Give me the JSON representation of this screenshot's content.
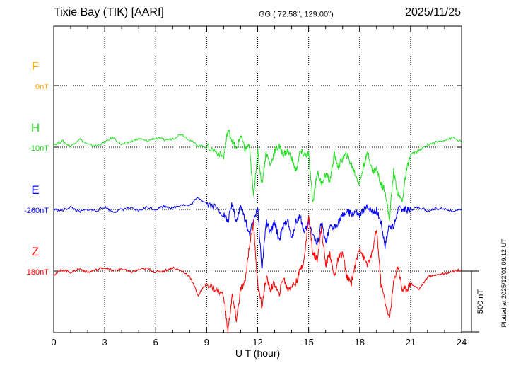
{
  "header": {
    "station": "Tixie Bay (TIK)  [AARI]",
    "coords_prefix": "GG ( 72.58",
    "coords_mid": ", 129.00",
    "coords_suffix": ")",
    "date": "2025/11/25"
  },
  "footer": {
    "plotted_at": "Plotted at 2025/12/01 09:12 UT",
    "scale_label": "500 nT",
    "scale_nT": 500
  },
  "colors": {
    "F": "#f5a800",
    "H": "#22dd22",
    "E": "#0000ff",
    "Z": "#ff0000"
  },
  "chart_data": {
    "type": "line",
    "xlabel": "U T (hour)",
    "xlim": [
      0,
      24
    ],
    "xticks": [
      "0",
      "3",
      "6",
      "9",
      "12",
      "15",
      "18",
      "21",
      "24"
    ],
    "grid": true,
    "series": [
      {
        "name": "F",
        "base_label": "0nT",
        "color": "#f5a800",
        "x": [],
        "y": []
      },
      {
        "name": "H",
        "base_label": "-10nT",
        "color": "#22dd22",
        "x": [
          0,
          0.5,
          1,
          1.5,
          2,
          2.5,
          3,
          3.5,
          4,
          4.5,
          5,
          5.5,
          6,
          6.5,
          7,
          7.5,
          8,
          8.5,
          9,
          9.5,
          10,
          10.25,
          10.5,
          10.75,
          11,
          11.25,
          11.5,
          11.75,
          12,
          12.25,
          12.5,
          12.75,
          13,
          13.25,
          13.5,
          13.75,
          14,
          14.25,
          14.5,
          14.75,
          15,
          15.25,
          15.5,
          15.75,
          16,
          16.25,
          16.5,
          16.75,
          17,
          17.25,
          17.5,
          17.75,
          18,
          18.25,
          18.5,
          18.75,
          19,
          19.25,
          19.5,
          19.75,
          20,
          20.25,
          20.5,
          20.75,
          21,
          21.5,
          22,
          22.5,
          23,
          23.5,
          24
        ],
        "y": [
          20,
          50,
          5,
          70,
          20,
          10,
          40,
          80,
          20,
          45,
          70,
          50,
          75,
          60,
          70,
          110,
          60,
          10,
          5,
          -30,
          -80,
          140,
          60,
          -25,
          100,
          -20,
          20,
          -400,
          -40,
          -300,
          -40,
          -150,
          -30,
          10,
          -60,
          -30,
          -90,
          -200,
          -40,
          -60,
          -60,
          -460,
          -200,
          -300,
          -220,
          -280,
          -60,
          -160,
          -90,
          -60,
          -140,
          -220,
          -300,
          -140,
          -40,
          -200,
          -180,
          -300,
          -350,
          -600,
          -200,
          -380,
          -440,
          -200,
          -60,
          -30,
          20,
          40,
          60,
          80,
          40
        ]
      },
      {
        "name": "E",
        "base_label": "-260nT",
        "color": "#0000ff",
        "x": [
          0,
          0.5,
          1,
          1.5,
          2,
          2.5,
          3,
          3.5,
          4,
          4.5,
          5,
          5.5,
          6,
          6.5,
          7,
          7.5,
          8,
          8.5,
          9,
          9.5,
          10,
          10.25,
          10.5,
          10.75,
          11,
          11.25,
          11.5,
          11.75,
          12,
          12.25,
          12.5,
          12.75,
          13,
          13.25,
          13.5,
          13.75,
          14,
          14.25,
          14.5,
          14.75,
          15,
          15.25,
          15.5,
          15.75,
          16,
          16.25,
          16.5,
          16.75,
          17,
          17.25,
          17.5,
          17.75,
          18,
          18.25,
          18.5,
          18.75,
          19,
          19.25,
          19.5,
          19.75,
          20,
          20.25,
          20.5,
          20.75,
          21,
          21.5,
          22,
          22.5,
          23,
          23.5,
          24
        ],
        "y": [
          0,
          -10,
          20,
          -20,
          0,
          -10,
          20,
          -20,
          0,
          10,
          -10,
          20,
          0,
          30,
          10,
          40,
          30,
          100,
          50,
          20,
          -40,
          -100,
          50,
          -100,
          30,
          -80,
          -200,
          -100,
          20,
          -500,
          -100,
          -200,
          -100,
          -250,
          -150,
          -80,
          -250,
          -100,
          -50,
          -200,
          -100,
          -200,
          -300,
          -100,
          -280,
          -150,
          -150,
          -100,
          -50,
          -20,
          -40,
          -20,
          -60,
          0,
          20,
          -20,
          -10,
          -100,
          -300,
          -120,
          -150,
          0,
          10,
          -10,
          0,
          20,
          -10,
          10,
          0,
          -10,
          0
        ]
      },
      {
        "name": "Z",
        "base_label": "180nT",
        "color": "#ff0000",
        "x": [
          0,
          0.5,
          1,
          1.5,
          2,
          2.5,
          3,
          3.5,
          4,
          4.5,
          5,
          5.5,
          6,
          6.5,
          7,
          7.5,
          8,
          8.5,
          9,
          9.5,
          10,
          10.25,
          10.5,
          10.75,
          11,
          11.25,
          11.5,
          11.75,
          12,
          12.25,
          12.5,
          12.75,
          13,
          13.25,
          13.5,
          13.75,
          14,
          14.25,
          14.5,
          14.75,
          15,
          15.25,
          15.5,
          15.75,
          16,
          16.25,
          16.5,
          16.75,
          17,
          17.25,
          17.5,
          17.75,
          18,
          18.25,
          18.5,
          18.75,
          19,
          19.25,
          19.5,
          19.75,
          20,
          20.25,
          20.5,
          20.75,
          21,
          21.5,
          22,
          22.5,
          23,
          23.5,
          24
        ],
        "y": [
          -30,
          10,
          -10,
          20,
          -10,
          10,
          30,
          0,
          20,
          -10,
          10,
          20,
          -10,
          0,
          30,
          0,
          -40,
          -200,
          -100,
          -150,
          -200,
          -500,
          -200,
          -400,
          -150,
          -100,
          200,
          400,
          -100,
          -300,
          -50,
          -150,
          -100,
          -200,
          -50,
          -150,
          -120,
          -100,
          10,
          100,
          450,
          150,
          100,
          350,
          50,
          150,
          -50,
          100,
          150,
          -50,
          -100,
          50,
          200,
          100,
          50,
          150,
          350,
          -100,
          -250,
          -400,
          -100,
          50,
          -150,
          -150,
          -100,
          -150,
          -50,
          -30,
          -20,
          0,
          10
        ]
      }
    ]
  }
}
